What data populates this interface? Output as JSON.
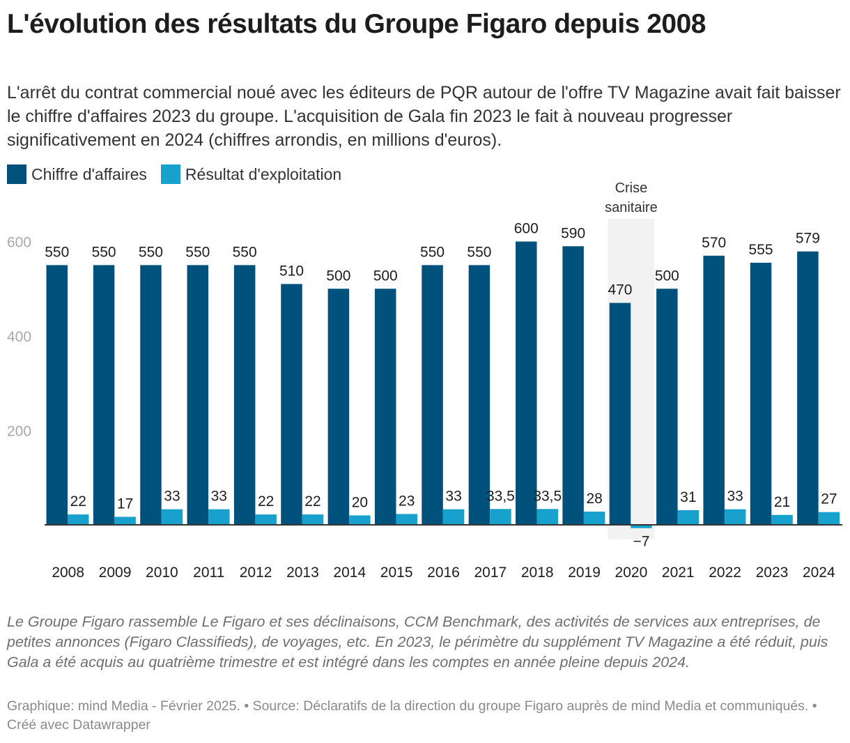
{
  "title": "L'évolution des résultats du Groupe Figaro depuis 2008",
  "subtitle": "L'arrêt du contrat commercial noué avec les éditeurs de PQR autour de l'offre TV Magazine avait fait baisser le chiffre d'affaires 2023 du groupe. L'acquisition de Gala fin 2023 le fait à nouveau progresser significativement en 2024 (chiffres arrondis, en millions d'euros).",
  "legend": [
    {
      "label": "Chiffre d'affaires",
      "color": "#00527c"
    },
    {
      "label": "Résultat d'exploitation",
      "color": "#18a1cd"
    }
  ],
  "chart_data": {
    "type": "bar",
    "categories": [
      "2008",
      "2009",
      "2010",
      "2011",
      "2012",
      "2013",
      "2014",
      "2015",
      "2016",
      "2017",
      "2018",
      "2019",
      "2020",
      "2021",
      "2022",
      "2023",
      "2024"
    ],
    "series": [
      {
        "name": "Chiffre d'affaires",
        "color": "#00527c",
        "values": [
          550,
          550,
          550,
          550,
          550,
          510,
          500,
          500,
          550,
          550,
          600,
          590,
          470,
          500,
          570,
          555,
          579
        ],
        "labels": [
          "550",
          "550",
          "550",
          "550",
          "550",
          "510",
          "500",
          "500",
          "550",
          "550",
          "600",
          "590",
          "470",
          "500",
          "570",
          "555",
          "579"
        ]
      },
      {
        "name": "Résultat d'exploitation",
        "color": "#18a1cd",
        "values": [
          22,
          17,
          33,
          33,
          22,
          22,
          20,
          23,
          33,
          33.5,
          33.5,
          28,
          -7,
          31,
          33,
          21,
          27
        ],
        "labels": [
          "22",
          "17",
          "33",
          "33",
          "22",
          "22",
          "20",
          "23",
          "33",
          "33,5",
          "33,5",
          "28",
          "−7",
          "31",
          "33",
          "21",
          "27"
        ]
      }
    ],
    "yticks": [
      200,
      400,
      600
    ],
    "ylim": [
      -7,
      600
    ],
    "grid": false,
    "legend_position": "top-left",
    "annotation": {
      "text_lines": [
        "Crise",
        "sanitaire"
      ],
      "category": "2020"
    }
  },
  "notes": "Le Groupe Figaro rassemble Le Figaro et ses déclinaisons, CCM Benchmark, des activités de services aux entreprises, de petites annonces (Figaro Classifieds), de voyages, etc. En 2023, le périmètre du supplément TV Magazine a été réduit, puis Gala a été acquis au quatrième trimestre et est intégré dans les comptes en année pleine depuis 2024.",
  "footer": "Graphique: mind Media - Février 2025. • Source: Déclaratifs de la direction du groupe Figaro auprès de mind Media et communiqués. • Créé avec Datawrapper"
}
